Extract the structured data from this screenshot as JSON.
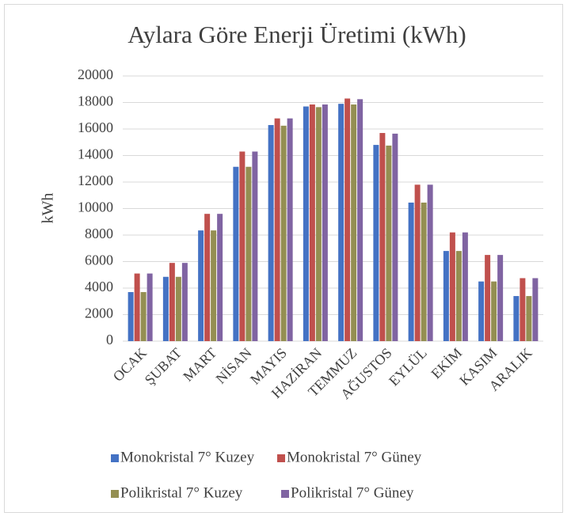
{
  "chart_data": {
    "type": "bar",
    "title": "Aylara Göre Enerji Üretimi (kWh)",
    "y_label": "kWh",
    "categories": [
      "OCAK",
      "ŞUBAT",
      "MART",
      "NİSAN",
      "MAYIS",
      "HAZİRAN",
      "TEMMUZ",
      "AĞUSTOS",
      "EYLÜL",
      "EKİM",
      "KASIM",
      "ARALIK"
    ],
    "series": [
      {
        "name": "Monokristal 7° Kuzey",
        "color": "#4472c4",
        "values": [
          3700,
          4850,
          8350,
          13150,
          16300,
          17700,
          17900,
          14800,
          10450,
          6800,
          4500,
          3400
        ]
      },
      {
        "name": "Monokristal 7° Güney",
        "color": "#c0504d",
        "values": [
          5100,
          5900,
          9600,
          14300,
          16800,
          17850,
          18300,
          15700,
          11800,
          8200,
          6500,
          4750
        ]
      },
      {
        "name": "Polikristal 7° Kuzey",
        "color": "#948f52",
        "values": [
          3700,
          4850,
          8350,
          13150,
          16250,
          17650,
          17850,
          14750,
          10450,
          6800,
          4500,
          3400
        ]
      },
      {
        "name": "Polikristal 7° Güney",
        "color": "#8064a2",
        "values": [
          5100,
          5900,
          9600,
          14300,
          16800,
          17850,
          18250,
          15650,
          11800,
          8200,
          6500,
          4750
        ]
      }
    ],
    "ylim": [
      0,
      20000
    ],
    "yticks": [
      0,
      2000,
      4000,
      6000,
      8000,
      10000,
      12000,
      14000,
      16000,
      18000,
      20000
    ],
    "grid": true,
    "legend": "bottom"
  }
}
